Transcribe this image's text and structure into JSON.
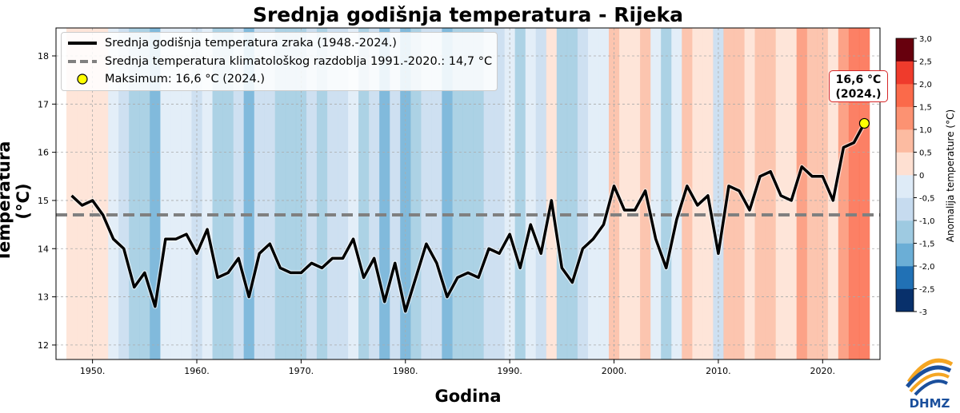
{
  "chart_data": {
    "type": "line",
    "title": "Srednja godišnja temperatura - Rijeka",
    "xlabel": "Godina",
    "ylabel": "Temperatura (°C)",
    "xlim": [
      1946.5,
      2025.5
    ],
    "ylim": [
      11.7,
      18.58
    ],
    "x_ticks": [
      1950,
      1960,
      1970,
      1980,
      1990,
      2000,
      2010,
      2020
    ],
    "x_tick_labels": [
      "1950.",
      "1960.",
      "1970.",
      "1980.",
      "1990.",
      "2000.",
      "2010.",
      "2020."
    ],
    "y_ticks": [
      12,
      13,
      14,
      15,
      16,
      17,
      18
    ],
    "y_tick_labels": [
      "12",
      "13",
      "14",
      "15",
      "16",
      "17",
      "18"
    ],
    "grid": true,
    "legend_position": "top-left",
    "years": [
      1948,
      1949,
      1950,
      1951,
      1952,
      1953,
      1954,
      1955,
      1956,
      1957,
      1958,
      1959,
      1960,
      1961,
      1962,
      1963,
      1964,
      1965,
      1966,
      1967,
      1968,
      1969,
      1970,
      1971,
      1972,
      1973,
      1974,
      1975,
      1976,
      1977,
      1978,
      1979,
      1980,
      1981,
      1982,
      1983,
      1984,
      1985,
      1986,
      1987,
      1988,
      1989,
      1990,
      1991,
      1992,
      1993,
      1994,
      1995,
      1996,
      1997,
      1998,
      1999,
      2000,
      2001,
      2002,
      2003,
      2004,
      2005,
      2006,
      2007,
      2008,
      2009,
      2010,
      2011,
      2012,
      2013,
      2014,
      2015,
      2016,
      2017,
      2018,
      2019,
      2020,
      2021,
      2022,
      2023,
      2024
    ],
    "series": [
      {
        "name": "Srednja godišnja temperatura zraka (1948.-2024.)",
        "values": [
          15.1,
          14.9,
          15.0,
          14.7,
          14.2,
          14.0,
          13.2,
          13.5,
          12.8,
          14.2,
          14.2,
          14.3,
          13.9,
          14.4,
          13.4,
          13.5,
          13.8,
          13.0,
          13.9,
          14.1,
          13.6,
          13.5,
          13.5,
          13.7,
          13.6,
          13.8,
          13.8,
          14.2,
          13.4,
          13.8,
          12.9,
          13.7,
          12.7,
          13.4,
          14.1,
          13.7,
          13.0,
          13.4,
          13.5,
          13.4,
          14.0,
          13.9,
          14.3,
          13.6,
          14.5,
          13.9,
          15.0,
          13.6,
          13.3,
          14.0,
          14.2,
          14.5,
          15.3,
          14.8,
          14.8,
          15.2,
          14.2,
          13.6,
          14.6,
          15.3,
          14.9,
          15.1,
          13.9,
          15.3,
          15.2,
          14.8,
          15.5,
          15.6,
          15.1,
          15.0,
          15.7,
          15.5,
          15.5,
          15.0,
          16.1,
          16.2,
          16.6
        ]
      }
    ],
    "baseline": {
      "label": "Srednja temperatura klimatološkog razdoblja 1991.-2020.: 14,7 °C",
      "value": 14.7
    },
    "maximum": {
      "label": "Maksimum: 16,6 °C (2024.)",
      "year": 2024,
      "value": 16.6
    },
    "annotation": {
      "line1": "16,6 °C",
      "line2": "(2024.)"
    },
    "colorbar": {
      "label": "Anomalija temperature (°C)",
      "range": [
        -3,
        3
      ],
      "ticks": [
        3.0,
        2.5,
        2.0,
        1.5,
        1.0,
        0.5,
        0,
        -0.5,
        -1.0,
        -1.5,
        -2.0,
        -2.5,
        -3
      ],
      "tick_labels": [
        "3,0",
        "2,5",
        "2,0",
        "1,5",
        "1,0",
        "0,5",
        "0",
        "-0,5",
        "-1,0",
        "-1,5",
        "-2,0",
        "-2,5",
        "-3"
      ],
      "colors": [
        "#08306b",
        "#2171b5",
        "#6baed6",
        "#9ecae1",
        "#c6dbef",
        "#deebf7",
        "#fee0d2",
        "#fcbba1",
        "#fc9272",
        "#fb6a4a",
        "#ef3b2c",
        "#67000d"
      ]
    },
    "colors": {
      "line": "#000000",
      "baseline": "#808080",
      "marker": "#ffff00",
      "annotation_border": "#d62728"
    }
  },
  "logo": {
    "text": "DHMZ"
  }
}
